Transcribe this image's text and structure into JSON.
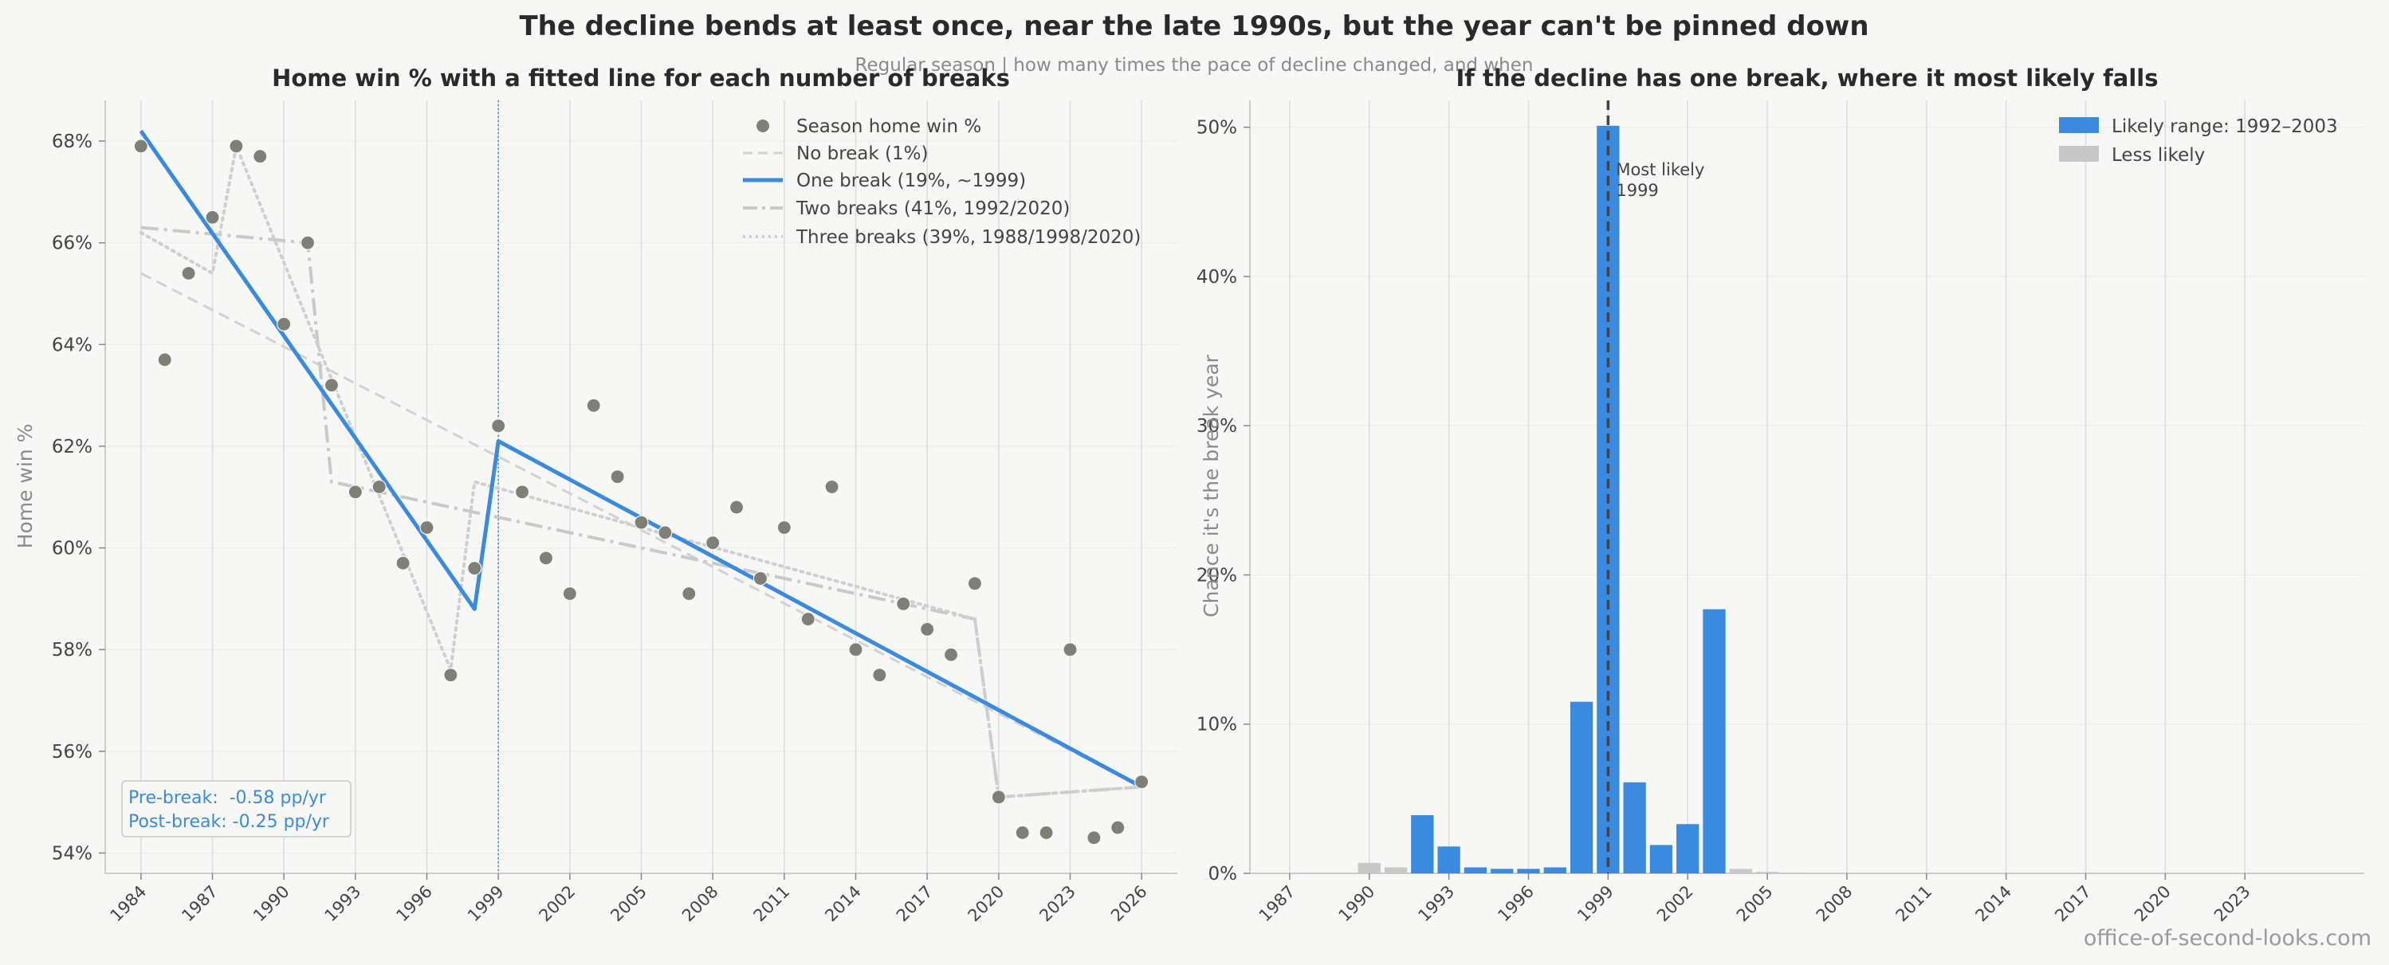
{
  "figure": {
    "title": "The decline bends at least once, near the late 1990s, but the year can't be pinned down",
    "subtitle": "Regular season  |  how many times the pace of decline changed, and when",
    "watermark": "office-of-second-looks.com"
  },
  "colors": {
    "accent": "#3a8ae0",
    "points": "#7f7f78",
    "grey_line": "#d2d2d2",
    "less_likely": "#c8c8c8",
    "background": "#f7f7f5"
  },
  "annotations": {
    "slopes": [
      "Pre-break:  -0.58 pp/yr",
      "Post-break: -0.25 pp/yr"
    ],
    "most_likely": [
      "Most likely",
      "1999"
    ]
  },
  "chart_data": [
    {
      "type": "scatter",
      "title": "Home win % with a fitted line for each number of breaks",
      "xlabel": "",
      "ylabel": "Home win %",
      "xlim": [
        1982.5,
        2027.5
      ],
      "ylim": [
        53.6,
        68.8
      ],
      "x_ticks": [
        "1984",
        "1987",
        "1990",
        "1993",
        "1996",
        "1999",
        "2002",
        "2005",
        "2008",
        "2011",
        "2014",
        "2017",
        "2020",
        "2023",
        "2026"
      ],
      "y_ticks": [
        "54%",
        "56%",
        "58%",
        "60%",
        "62%",
        "64%",
        "66%",
        "68%"
      ],
      "grid": "vertical",
      "legend_position": "top-right",
      "marker_line": 1999,
      "points": {
        "name": "Season home win %",
        "x": [
          1984,
          1985,
          1986,
          1987,
          1988,
          1989,
          1990,
          1991,
          1992,
          1993,
          1994,
          1995,
          1996,
          1997,
          1998,
          1999,
          2000,
          2001,
          2002,
          2003,
          2004,
          2005,
          2006,
          2007,
          2008,
          2009,
          2010,
          2011,
          2012,
          2013,
          2014,
          2015,
          2016,
          2017,
          2018,
          2019,
          2020,
          2021,
          2022,
          2023,
          2024,
          2025,
          2026
        ],
        "y": [
          67.9,
          63.7,
          65.4,
          66.5,
          67.9,
          67.7,
          64.4,
          66.0,
          63.2,
          61.1,
          61.2,
          59.7,
          60.4,
          57.5,
          59.6,
          62.4,
          61.1,
          59.8,
          59.1,
          62.8,
          61.4,
          60.5,
          60.3,
          59.1,
          60.1,
          60.8,
          59.4,
          60.4,
          58.6,
          61.2,
          58.0,
          57.5,
          58.9,
          58.4,
          57.9,
          59.3,
          55.1,
          54.4,
          54.4,
          58.0,
          54.3,
          54.5,
          55.4
        ]
      },
      "series": [
        {
          "name": "No break  (1%)",
          "style": "dashed",
          "x": [
            1984,
            2026
          ],
          "y": [
            65.4,
            55.3
          ]
        },
        {
          "name": "One break  (19%, ~1999)",
          "style": "solid",
          "x": [
            1984,
            1998,
            1999,
            2026
          ],
          "y": [
            68.2,
            58.8,
            62.1,
            55.3
          ]
        },
        {
          "name": "Two breaks  (41%, 1992/2020)",
          "style": "dashdot",
          "x": [
            1984,
            1991,
            1992,
            2019,
            2020,
            2026
          ],
          "y": [
            66.3,
            66.0,
            61.3,
            58.6,
            55.1,
            55.3
          ]
        },
        {
          "name": "Three breaks  (39%, 1988/1998/2020)",
          "style": "dotted",
          "x": [
            1984,
            1987,
            1988,
            1997,
            1998,
            2019,
            2020,
            2026
          ],
          "y": [
            66.2,
            65.4,
            67.9,
            57.6,
            61.3,
            58.6,
            55.1,
            55.3
          ]
        }
      ]
    },
    {
      "type": "bar",
      "title": "If the decline has one break, where it most likely falls",
      "xlabel": "",
      "ylabel": "Chance it's the break year",
      "xlim": [
        1985.5,
        2027.5
      ],
      "ylim": [
        0,
        51.8
      ],
      "x_ticks": [
        "1987",
        "1990",
        "1993",
        "1996",
        "1999",
        "2002",
        "2005",
        "2008",
        "2011",
        "2014",
        "2017",
        "2020",
        "2023"
      ],
      "y_ticks": [
        "0%",
        "10%",
        "20%",
        "30%",
        "40%",
        "50%"
      ],
      "grid": "vertical",
      "legend_position": "top-right",
      "marker_line": 1999,
      "categories": [
        1988,
        1989,
        1990,
        1991,
        1992,
        1993,
        1994,
        1995,
        1996,
        1997,
        1998,
        1999,
        2000,
        2001,
        2002,
        2003,
        2004,
        2005,
        2006
      ],
      "values": [
        0.05,
        0.05,
        0.7,
        0.4,
        3.9,
        1.8,
        0.4,
        0.3,
        0.3,
        0.4,
        11.5,
        50.1,
        6.1,
        1.9,
        3.3,
        17.7,
        0.3,
        0.1,
        0.05
      ],
      "likely_range": [
        1992,
        2003
      ],
      "series_names": [
        "Likely range: 1992–2003",
        "Less likely"
      ]
    }
  ]
}
